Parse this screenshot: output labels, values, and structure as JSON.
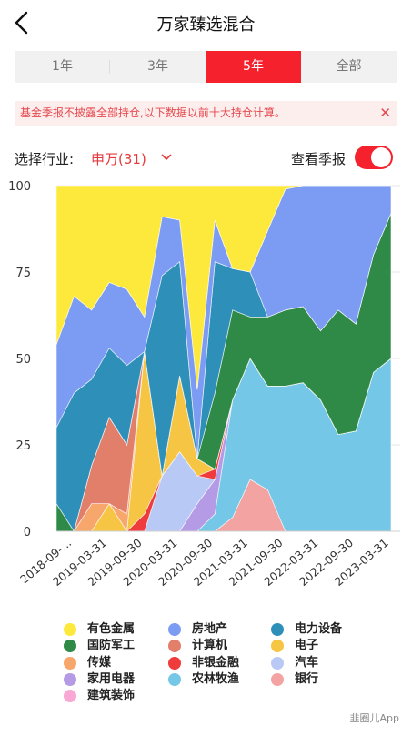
{
  "header": {
    "title": "万家臻选混合"
  },
  "period_tabs": [
    {
      "label": "1年",
      "active": false
    },
    {
      "label": "3年",
      "active": false
    },
    {
      "label": "5年",
      "active": true
    },
    {
      "label": "全部",
      "active": false
    }
  ],
  "notice": {
    "text": "基金季报不披露全部持仓,以下数据以前十大持仓计算。",
    "close_symbol": "✕"
  },
  "filter": {
    "label": "选择行业:",
    "value": "申万(31)",
    "report_label": "查看季报",
    "report_toggle_on": true
  },
  "colors": {
    "accent": "#f5222d",
    "notice_bg": "#fdeeee",
    "notice_text": "#e5484d"
  },
  "chart_data": {
    "type": "area",
    "stacked": true,
    "ylim": [
      0,
      100
    ],
    "yticks": [
      0,
      25,
      50,
      75,
      100
    ],
    "x_tick_labels": [
      "2018-09-...",
      "2019-03-31",
      "2019-09-30",
      "2020-03-31",
      "2020-09-30",
      "2021-03-31",
      "2021-09-30",
      "2022-03-31",
      "2022-09-30",
      "2023-03-31"
    ],
    "n_points": 20,
    "grid": true,
    "legend_position": "bottom",
    "series": [
      {
        "name": "建筑装饰",
        "color": "#f9a8d4",
        "values": [
          0,
          0,
          0,
          0,
          0,
          0,
          0,
          0,
          0,
          0,
          0,
          0,
          0,
          0,
          0,
          0,
          0,
          0,
          0,
          0
        ]
      },
      {
        "name": "银行",
        "color": "#f4a3a3",
        "values": [
          0,
          0,
          0,
          0,
          0,
          0,
          0,
          0,
          0,
          0,
          4,
          15,
          12,
          0,
          0,
          0,
          0,
          0,
          0,
          0
        ]
      },
      {
        "name": "农林牧渔",
        "color": "#74c7e6",
        "values": [
          0,
          0,
          0,
          0,
          0,
          0,
          0,
          0,
          0,
          5,
          34,
          35,
          30,
          42,
          43,
          38,
          28,
          29,
          46,
          50
        ]
      },
      {
        "name": "家用电器",
        "color": "#b59ae6",
        "values": [
          0,
          0,
          0,
          0,
          0,
          0,
          0,
          0,
          8,
          10,
          0,
          0,
          0,
          0,
          0,
          0,
          0,
          0,
          0,
          0
        ]
      },
      {
        "name": "汽车",
        "color": "#b9c9f5",
        "values": [
          0,
          0,
          0,
          0,
          0,
          0,
          16,
          23,
          8,
          0,
          0,
          0,
          0,
          0,
          0,
          0,
          0,
          0,
          0,
          0
        ]
      },
      {
        "name": "非银金融",
        "color": "#ef3b3b",
        "values": [
          0,
          0,
          0,
          0,
          0,
          5,
          0,
          0,
          0,
          3,
          0,
          0,
          0,
          0,
          0,
          0,
          0,
          0,
          0,
          0
        ]
      },
      {
        "name": "电子",
        "color": "#f6c544",
        "values": [
          0,
          0,
          0,
          8,
          0,
          47,
          0,
          22,
          5,
          0,
          0,
          0,
          0,
          0,
          0,
          0,
          0,
          0,
          0,
          0
        ]
      },
      {
        "name": "传媒",
        "color": "#f7a76b",
        "values": [
          0,
          0,
          8,
          0,
          5,
          0,
          0,
          0,
          0,
          0,
          0,
          0,
          0,
          0,
          0,
          0,
          0,
          0,
          0,
          0
        ]
      },
      {
        "name": "计算机",
        "color": "#e27f6b",
        "values": [
          0,
          0,
          11,
          25,
          20,
          0,
          0,
          0,
          0,
          0,
          0,
          0,
          0,
          0,
          0,
          0,
          0,
          0,
          0,
          0
        ]
      },
      {
        "name": "国防军工",
        "color": "#2f8a47",
        "values": [
          8,
          0,
          0,
          0,
          0,
          0,
          0,
          0,
          0,
          22,
          26,
          12,
          20,
          22,
          22,
          20,
          36,
          31,
          34,
          42
        ]
      },
      {
        "name": "电力设备",
        "color": "#2e8fb9",
        "values": [
          22,
          40,
          25,
          20,
          23,
          0,
          58,
          33,
          0,
          38,
          12,
          13,
          0,
          0,
          0,
          0,
          0,
          0,
          0,
          0
        ]
      },
      {
        "name": "房地产",
        "color": "#7b9cf2",
        "values": [
          24,
          28,
          20,
          19,
          22,
          10,
          17,
          12,
          20,
          12,
          0,
          0,
          25,
          35,
          35,
          42,
          36,
          40,
          20,
          8
        ]
      },
      {
        "name": "有色金属",
        "color": "#fde93b",
        "values": [
          46,
          32,
          36,
          28,
          30,
          38,
          9,
          10,
          59,
          10,
          24,
          25,
          13,
          1,
          0,
          0,
          0,
          0,
          0,
          0
        ]
      }
    ],
    "legend_order": [
      "有色金属",
      "房地产",
      "电力设备",
      "国防军工",
      "计算机",
      "电子",
      "传媒",
      "非银金融",
      "汽车",
      "家用电器",
      "农林牧渔",
      "银行",
      "建筑装饰"
    ]
  },
  "watermark": "韭圈儿App"
}
